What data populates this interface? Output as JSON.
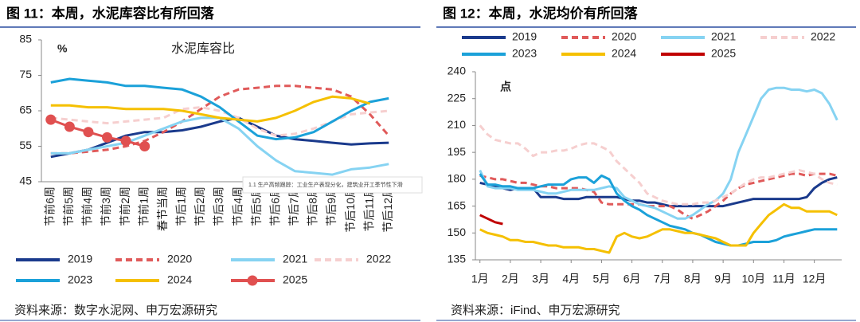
{
  "chart_data": [
    {
      "type": "line",
      "title": "图 11：本周，水泥库容比有所回落",
      "subtitle": "水泥库容比",
      "unit": "%",
      "source": "资料来源：数字水泥网、申万宏源研究",
      "categories": [
        "节前6周",
        "节前5周",
        "节前4周",
        "节前3周",
        "节前2周",
        "节前1周",
        "春节当周",
        "节后1周",
        "节后2周",
        "节后3周",
        "节后4周",
        "节后5周",
        "节后6周",
        "节后7周",
        "节后8周",
        "节后9周",
        "节后10周",
        "节后11周",
        "节后12周"
      ],
      "ylim": [
        45,
        85
      ],
      "yticks": [
        45,
        55,
        65,
        75,
        85
      ],
      "series": [
        {
          "name": "2019",
          "color": "#1a3a8c",
          "dashed": false,
          "values": [
            52,
            53,
            54,
            56,
            58,
            59,
            59,
            59.5,
            60.5,
            62,
            63,
            60.5,
            58,
            57,
            56.5,
            56,
            55.5,
            55.8,
            56
          ]
        },
        {
          "name": "2020",
          "color": "#e05a5a",
          "dashed": true,
          "values": [
            53,
            53,
            53.5,
            54,
            55,
            56.5,
            59,
            62,
            65.5,
            69,
            71,
            71.5,
            72,
            72,
            71.5,
            71,
            69,
            64,
            58
          ]
        },
        {
          "name": "2021",
          "color": "#86d3f2",
          "dashed": false,
          "values": [
            53,
            53,
            54,
            55,
            56,
            58,
            60,
            62,
            63,
            63,
            60,
            55,
            51,
            48,
            47.5,
            47,
            48.5,
            49,
            50
          ]
        },
        {
          "name": "2022",
          "color": "#f6cfcf",
          "dashed": true,
          "values": [
            63,
            62.5,
            62,
            61.5,
            62,
            62.5,
            63,
            65.5,
            66,
            65,
            63,
            60,
            58,
            58.5,
            60,
            62,
            64,
            64.5,
            65
          ]
        },
        {
          "name": "2023",
          "color": "#1ba1d9",
          "dashed": false,
          "values": [
            73,
            74,
            73.5,
            73,
            72,
            72,
            71.5,
            71,
            69,
            66,
            62,
            58,
            57,
            57.5,
            59,
            62,
            65,
            67.5,
            68.5
          ]
        },
        {
          "name": "2024",
          "color": "#f5c000",
          "dashed": false,
          "values": [
            66.5,
            66.5,
            66,
            66,
            65.5,
            65.5,
            65.5,
            65,
            64,
            63,
            62.5,
            62,
            63,
            65,
            67.5,
            69,
            68.5,
            67,
            null
          ]
        },
        {
          "name": "2025",
          "color": "#e05050",
          "dashed": false,
          "markers": true,
          "values": [
            62.5,
            60.5,
            59,
            57.5,
            56.5,
            55,
            null,
            null,
            null,
            null,
            null,
            null,
            null,
            null,
            null,
            null,
            null,
            null,
            null
          ]
        }
      ]
    },
    {
      "type": "line",
      "title": "图 12：本周，水泥均价有所回落",
      "unit": "点",
      "source": "资料来源：iFind、申万宏源研究",
      "x": [
        1,
        1.25,
        1.5,
        1.75,
        2,
        2.25,
        2.5,
        2.75,
        3,
        3.25,
        3.5,
        3.75,
        4,
        4.25,
        4.5,
        4.75,
        5,
        5.25,
        5.5,
        5.75,
        6,
        6.25,
        6.5,
        6.75,
        7,
        7.25,
        7.5,
        7.75,
        8,
        8.25,
        8.5,
        8.75,
        9,
        9.25,
        9.5,
        9.75,
        10,
        10.25,
        10.5,
        10.75,
        11,
        11.25,
        11.5,
        11.75,
        12,
        12.25,
        12.5,
        12.75
      ],
      "xlim": [
        0.85,
        12.9
      ],
      "xticks": [
        {
          "value": 1,
          "label": "1月"
        },
        {
          "value": 2,
          "label": "2月"
        },
        {
          "value": 3,
          "label": "3月"
        },
        {
          "value": 4,
          "label": "4月"
        },
        {
          "value": 5,
          "label": "5月"
        },
        {
          "value": 6,
          "label": "6月"
        },
        {
          "value": 7,
          "label": "7月"
        },
        {
          "value": 8,
          "label": "8月"
        },
        {
          "value": 9,
          "label": "9月"
        },
        {
          "value": 10,
          "label": "10月"
        },
        {
          "value": 11,
          "label": "11月"
        },
        {
          "value": 12,
          "label": "12月"
        }
      ],
      "ylim": [
        135,
        240
      ],
      "yticks": [
        135,
        150,
        165,
        180,
        195,
        210,
        225,
        240
      ],
      "series": [
        {
          "name": "2019",
          "color": "#1a3a8c",
          "dashed": false,
          "values": [
            178,
            177,
            176,
            175,
            174,
            175,
            175,
            175,
            170,
            170,
            170,
            169,
            169,
            169,
            170,
            170,
            170,
            170,
            170,
            169,
            168,
            168,
            167,
            167,
            166,
            165,
            165,
            165,
            165,
            165,
            165,
            165,
            165,
            166,
            167,
            168,
            169,
            169,
            169,
            169,
            169,
            169,
            169,
            170,
            175,
            178,
            180,
            181
          ]
        },
        {
          "name": "2020",
          "color": "#e05a5a",
          "dashed": true,
          "values": [
            182,
            181,
            180,
            180,
            179,
            178,
            178,
            177,
            176,
            176,
            175,
            175,
            175,
            175,
            174,
            173,
            167,
            166,
            166,
            166,
            166,
            166,
            165,
            165,
            165,
            165,
            163,
            160,
            158,
            160,
            162,
            165,
            168,
            172,
            175,
            177,
            178,
            179,
            180,
            181,
            182,
            183,
            183,
            182,
            183,
            183,
            183,
            182
          ]
        },
        {
          "name": "2021",
          "color": "#86d3f2",
          "dashed": false,
          "values": [
            185,
            176,
            175,
            175,
            175,
            174,
            174,
            174,
            173,
            172,
            172,
            173,
            174,
            174,
            174,
            174,
            175,
            176,
            175,
            170,
            168,
            166,
            165,
            164,
            162,
            160,
            158,
            158,
            160,
            163,
            166,
            168,
            172,
            180,
            195,
            205,
            215,
            225,
            230,
            231,
            231,
            230,
            230,
            229,
            230,
            228,
            222,
            213
          ]
        },
        {
          "name": "2022",
          "color": "#f6cfcf",
          "dashed": true,
          "values": [
            210,
            205,
            202,
            201,
            200,
            200,
            197,
            193,
            195,
            195,
            196,
            196,
            197,
            199,
            200,
            200,
            198,
            196,
            190,
            186,
            182,
            178,
            172,
            170,
            168,
            167,
            166,
            166,
            166,
            167,
            167,
            168,
            170,
            172,
            175,
            178,
            180,
            181,
            181,
            182,
            183,
            184,
            185,
            184,
            183,
            180,
            178,
            177
          ]
        },
        {
          "name": "2023",
          "color": "#1ba1d9",
          "dashed": false,
          "values": [
            183,
            177,
            177,
            176,
            176,
            175,
            175,
            175,
            176,
            177,
            177,
            177,
            180,
            181,
            181,
            178,
            182,
            180,
            172,
            168,
            165,
            163,
            160,
            158,
            156,
            154,
            153,
            152,
            150,
            149,
            147,
            145,
            144,
            143,
            143,
            144,
            145,
            145,
            145,
            146,
            148,
            149,
            150,
            151,
            152,
            152,
            152,
            152
          ]
        },
        {
          "name": "2024",
          "color": "#f5c000",
          "dashed": false,
          "values": [
            152,
            150,
            149,
            148,
            146,
            146,
            145,
            145,
            144,
            143,
            143,
            142,
            142,
            142,
            141,
            141,
            140,
            139,
            148,
            150,
            148,
            147,
            148,
            150,
            152,
            152,
            151,
            150,
            150,
            149,
            148,
            147,
            145,
            143,
            143,
            143,
            150,
            155,
            160,
            163,
            166,
            164,
            164,
            162,
            162,
            162,
            162,
            160
          ]
        },
        {
          "name": "2025",
          "color": "#c00000",
          "dashed": false,
          "values": [
            160,
            158,
            156,
            155,
            null,
            null,
            null,
            null,
            null,
            null,
            null,
            null,
            null,
            null,
            null,
            null,
            null,
            null,
            null,
            null,
            null,
            null,
            null,
            null,
            null,
            null,
            null,
            null,
            null,
            null,
            null,
            null,
            null,
            null,
            null,
            null,
            null,
            null,
            null,
            null,
            null,
            null,
            null,
            null,
            null,
            null,
            null,
            null
          ]
        }
      ]
    }
  ],
  "tooltip": "1.1 生产高频跟踪：工业生产表现分化，建筑业开工季节性下滑"
}
